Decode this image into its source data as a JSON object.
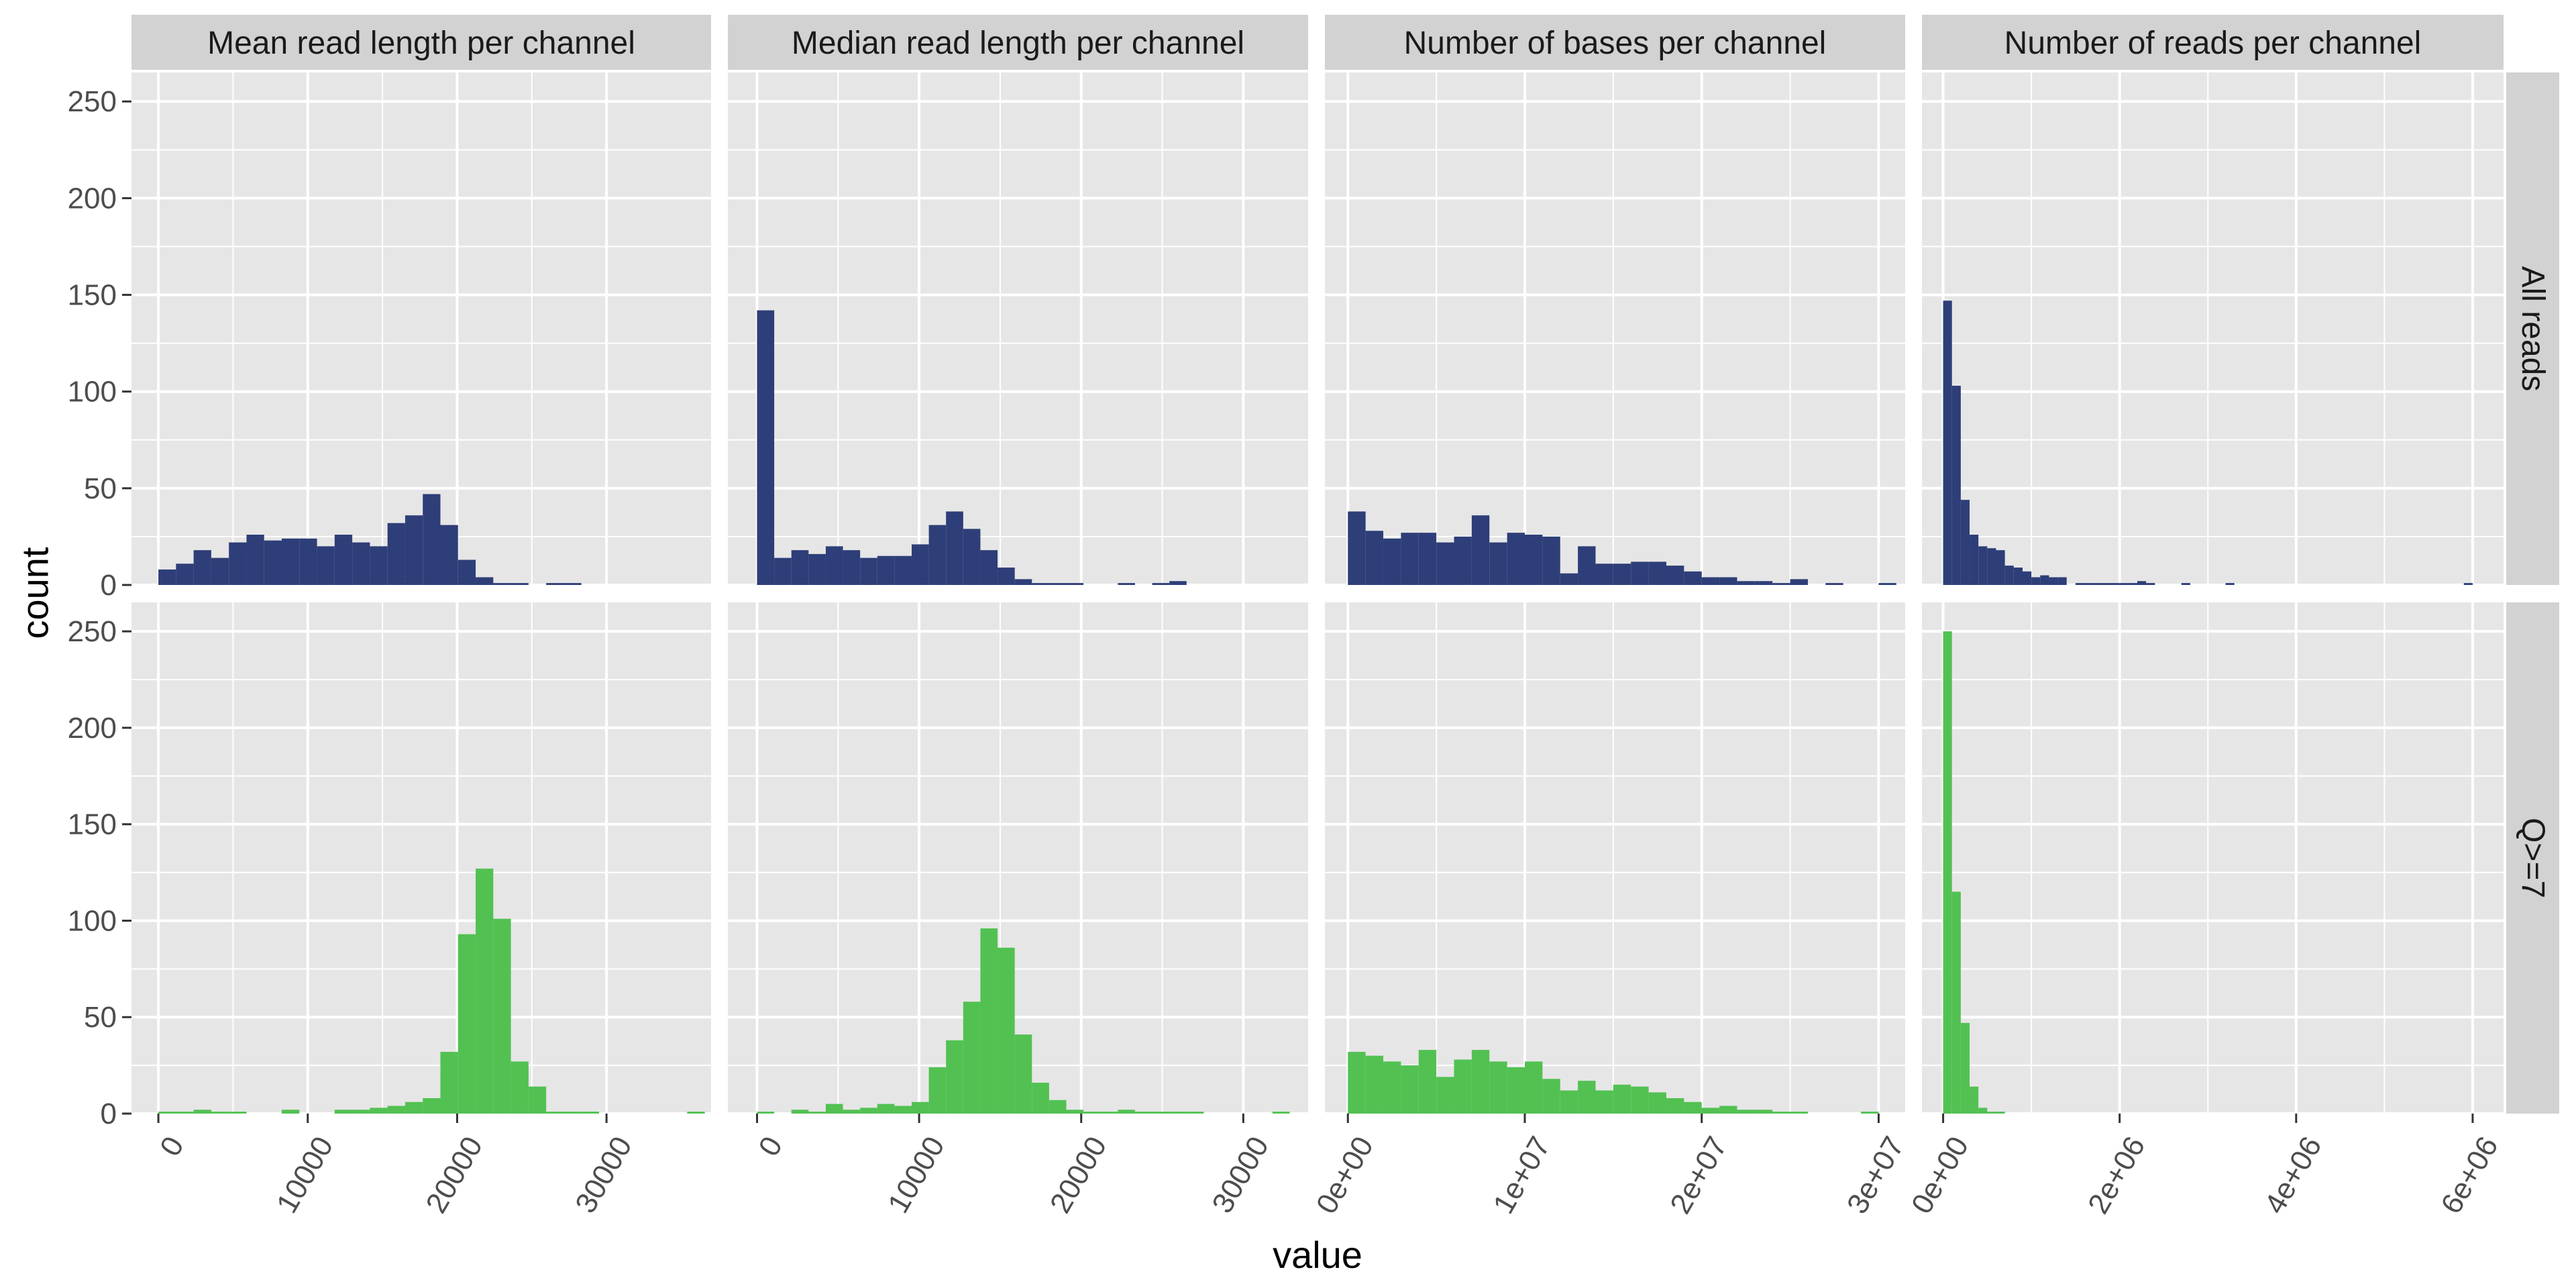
{
  "chart_data": {
    "type": "bar",
    "subtype": "faceted-histogram",
    "title": "",
    "xlabel": "value",
    "ylabel": "count",
    "ylim": [
      0,
      265
    ],
    "yticks": [
      0,
      50,
      100,
      150,
      200,
      250
    ],
    "grid": true,
    "legend": "none",
    "colors": {
      "All reads": "#2e3e78",
      "Q>=7": "#52c152",
      "panel_bg": "#e6e6e6",
      "strip_bg": "#d2d2d2",
      "grid": "#ffffff"
    },
    "rows": [
      "All reads",
      "Q>=7"
    ],
    "columns": [
      {
        "name": "Mean read length per channel",
        "xlim": [
          -1800,
          37000
        ],
        "xticks": [
          {
            "value": 0,
            "label": "0"
          },
          {
            "value": 10000,
            "label": "10000"
          },
          {
            "value": 20000,
            "label": "20000"
          },
          {
            "value": 30000,
            "label": "30000"
          }
        ],
        "binwidth": 1180,
        "series": {
          "All reads": {
            "start": 0,
            "counts": [
              8,
              11,
              18,
              14,
              22,
              26,
              23,
              24,
              24,
              20,
              26,
              22,
              20,
              32,
              36,
              47,
              31,
              13,
              4,
              1,
              1,
              0,
              1,
              1
            ]
          },
          "Q>=7": {
            "start": 0,
            "counts": [
              1,
              1,
              2,
              1,
              1,
              0,
              0,
              2,
              0,
              0,
              2,
              2,
              3,
              4,
              6,
              8,
              32,
              93,
              127,
              101,
              27,
              14,
              1,
              1,
              1,
              0,
              0,
              0,
              0,
              0,
              1
            ]
          }
        }
      },
      {
        "name": "Median read length per channel",
        "xlim": [
          -1800,
          34000
        ],
        "xticks": [
          {
            "value": 0,
            "label": "0"
          },
          {
            "value": 10000,
            "label": "10000"
          },
          {
            "value": 20000,
            "label": "20000"
          },
          {
            "value": 30000,
            "label": "30000"
          }
        ],
        "binwidth": 1060,
        "series": {
          "All reads": {
            "start": 0,
            "counts": [
              142,
              14,
              18,
              16,
              20,
              18,
              14,
              15,
              15,
              21,
              31,
              38,
              29,
              18,
              9,
              3,
              1,
              1,
              1,
              0,
              0,
              1,
              0,
              1,
              2
            ]
          },
          "Q>=7": {
            "start": 0,
            "counts": [
              1,
              0,
              2,
              1,
              5,
              2,
              3,
              5,
              4,
              6,
              24,
              38,
              58,
              96,
              86,
              41,
              16,
              7,
              2,
              1,
              1,
              2,
              1,
              1,
              1,
              1,
              0,
              0,
              0,
              0,
              1
            ]
          }
        }
      },
      {
        "name": "Number of bases per channel",
        "xlim": [
          -1300000,
          31500000
        ],
        "xticks": [
          {
            "value": 0,
            "label": "0e+00"
          },
          {
            "value": 10000000,
            "label": "1e+07"
          },
          {
            "value": 20000000,
            "label": "2e+07"
          },
          {
            "value": 30000000,
            "label": "3e+07"
          }
        ],
        "binwidth": 1000000,
        "series": {
          "All reads": {
            "start": 0,
            "counts": [
              38,
              28,
              24,
              27,
              27,
              22,
              25,
              36,
              22,
              27,
              26,
              25,
              6,
              20,
              11,
              11,
              12,
              12,
              10,
              7,
              4,
              4,
              2,
              2,
              1,
              3,
              0,
              1,
              0,
              0,
              1
            ]
          },
          "Q>=7": {
            "start": 0,
            "counts": [
              32,
              30,
              27,
              25,
              33,
              19,
              28,
              33,
              27,
              24,
              27,
              18,
              12,
              17,
              12,
              15,
              14,
              11,
              8,
              6,
              3,
              4,
              2,
              2,
              1,
              1,
              0,
              0,
              0,
              1
            ]
          }
        }
      },
      {
        "name": "Number of reads per channel",
        "xlim": [
          -240000,
          6350000
        ],
        "xticks": [
          {
            "value": 0,
            "label": "0e+00"
          },
          {
            "value": 2000000,
            "label": "2e+06"
          },
          {
            "value": 4000000,
            "label": "4e+06"
          },
          {
            "value": 6000000,
            "label": "6e+06"
          }
        ],
        "binwidth": 100000,
        "series": {
          "All reads": {
            "start": 0,
            "counts": [
              147,
              103,
              44,
              26,
              20,
              19,
              18,
              10,
              9,
              7,
              4,
              5,
              4,
              4,
              0,
              1,
              1,
              1,
              1,
              1,
              1,
              1,
              2,
              1,
              0,
              0,
              0,
              1,
              0,
              0,
              0,
              0,
              1,
              0,
              0,
              0,
              0,
              0,
              0,
              0,
              0,
              0,
              0,
              0,
              0,
              0,
              0,
              0,
              0,
              0,
              0,
              0,
              0,
              0,
              0,
              0,
              0,
              0,
              0,
              1
            ]
          },
          "Q>=7": {
            "start": 0,
            "counts": [
              250,
              115,
              47,
              14,
              3,
              1,
              1
            ]
          }
        }
      }
    ]
  }
}
